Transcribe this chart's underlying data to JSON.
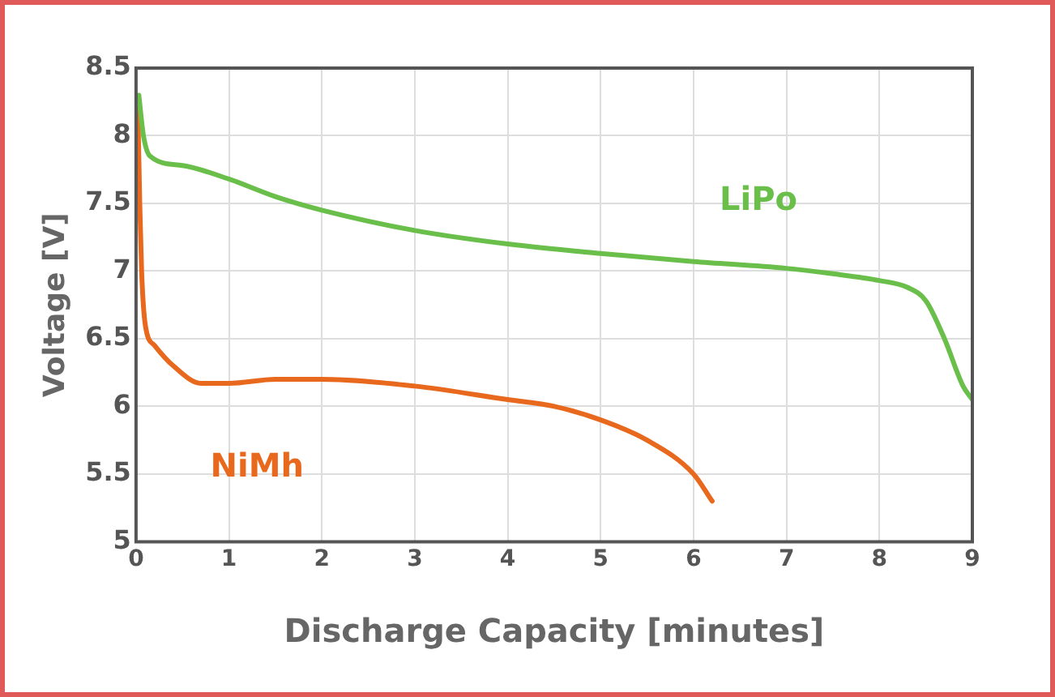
{
  "chart_data": {
    "type": "line",
    "xlabel": "Discharge Capacity [minutes]",
    "ylabel": "Voltage [V]",
    "xlim": [
      0,
      9
    ],
    "xticks": [
      0,
      1,
      2,
      3,
      4,
      5,
      6,
      7,
      8,
      9
    ],
    "ylim": [
      5,
      8.5
    ],
    "yticks": [
      5,
      5.5,
      6,
      6.5,
      7,
      7.5,
      8,
      8.5
    ],
    "grid": true,
    "legend": false,
    "marker": "none",
    "line_style": "solid",
    "series": [
      {
        "name": "LiPo",
        "color": "#6abf4b",
        "x": [
          0.03,
          0.08,
          0.15,
          0.5,
          1,
          1.5,
          2,
          3,
          4,
          5,
          6,
          7,
          7.5,
          8,
          8.3,
          8.5,
          8.7,
          8.9,
          9
        ],
        "values": [
          8.3,
          8.0,
          7.85,
          7.78,
          7.68,
          7.55,
          7.45,
          7.3,
          7.2,
          7.13,
          7.07,
          7.02,
          6.98,
          6.93,
          6.88,
          6.78,
          6.5,
          6.15,
          6.05
        ]
      },
      {
        "name": "NiMh",
        "color": "#e8691e",
        "x": [
          0.02,
          0.04,
          0.06,
          0.1,
          0.2,
          0.4,
          0.7,
          1,
          1.5,
          2,
          3,
          4,
          4.5,
          5,
          5.5,
          6,
          6.2
        ],
        "values": [
          8.2,
          7.5,
          7.0,
          6.6,
          6.45,
          6.3,
          6.17,
          6.17,
          6.2,
          6.2,
          6.15,
          6.05,
          6.0,
          5.9,
          5.75,
          5.5,
          5.3
        ]
      }
    ]
  }
}
